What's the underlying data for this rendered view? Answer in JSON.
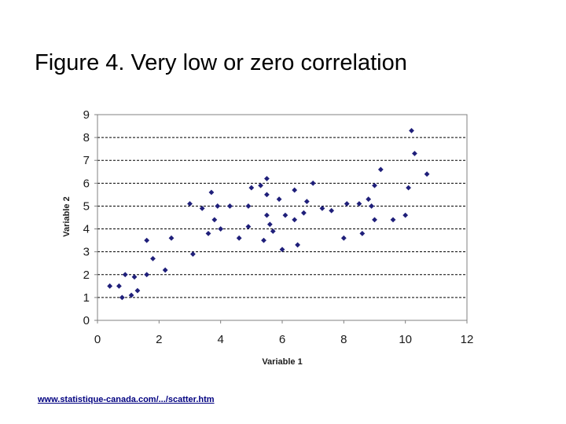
{
  "slide": {
    "title": "Figure 4. Very low or zero correlation",
    "source_link": "www.statistique-canada.com/.../scatter.htm"
  },
  "colors": {
    "point": "#1f1f7a",
    "grid": "#000000",
    "axis": "#808080"
  },
  "chart_data": {
    "type": "scatter",
    "title": "",
    "xlabel": "Variable 1",
    "ylabel": "Variable 2",
    "xlim": [
      0,
      12
    ],
    "ylim": [
      0,
      9
    ],
    "xticks": [
      0,
      2,
      4,
      6,
      8,
      10,
      12
    ],
    "yticks": [
      0,
      1,
      2,
      3,
      4,
      5,
      6,
      7,
      8,
      9
    ],
    "grid": "horizontal-dashed",
    "x": [
      0.4,
      0.7,
      0.9,
      0.8,
      1.1,
      1.2,
      1.3,
      1.6,
      1.6,
      1.8,
      2.2,
      2.4,
      3.0,
      3.1,
      3.4,
      3.6,
      3.7,
      3.8,
      3.9,
      4.0,
      4.3,
      4.6,
      4.9,
      4.9,
      5.0,
      5.3,
      5.4,
      5.5,
      5.5,
      5.5,
      5.6,
      5.7,
      5.9,
      6.0,
      6.1,
      6.4,
      6.4,
      6.5,
      6.7,
      6.8,
      7.0,
      7.3,
      7.6,
      8.0,
      8.1,
      8.5,
      8.6,
      8.8,
      8.9,
      9.0,
      9.0,
      9.2,
      9.6,
      10.0,
      10.1,
      10.2,
      10.3,
      10.7
    ],
    "y": [
      1.5,
      1.5,
      2.0,
      1.0,
      1.1,
      1.9,
      1.3,
      3.5,
      2.0,
      2.7,
      2.2,
      3.6,
      5.1,
      2.9,
      4.9,
      3.8,
      5.6,
      4.4,
      5.0,
      4.0,
      5.0,
      3.6,
      5.0,
      4.1,
      5.8,
      5.9,
      3.5,
      6.2,
      5.5,
      4.6,
      4.2,
      3.9,
      5.3,
      3.1,
      4.6,
      5.7,
      4.4,
      3.3,
      4.7,
      5.2,
      6.0,
      4.9,
      4.8,
      3.6,
      5.1,
      5.1,
      3.8,
      5.3,
      5.0,
      4.4,
      5.9,
      6.6,
      4.4,
      4.6,
      5.8,
      8.3,
      7.3,
      6.4
    ]
  }
}
